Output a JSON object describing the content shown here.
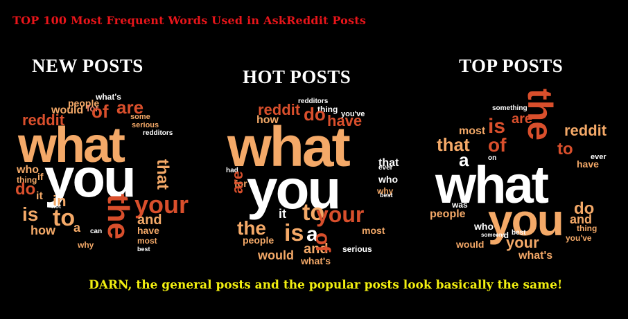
{
  "title": "TOP 100 Most Frequent Words Used in AskReddit Posts",
  "footer": "DARN, the general posts and the popular posts look basically the same!",
  "colors": {
    "orange": "#f4a968",
    "red": "#d94f2c",
    "dark_red": "#b0232a",
    "white": "#ffffff",
    "pink": "#e8836b"
  },
  "panels": [
    {
      "label": "NEW POSTS",
      "words": [
        "what's",
        "people",
        "would",
        "for",
        "of",
        "are",
        "reddit",
        "some",
        "serious",
        "redditors",
        "what",
        "you",
        "that",
        "who",
        "thing",
        "do",
        "if",
        "it",
        "your",
        "in",
        "the",
        "to",
        "is",
        "not",
        "how",
        "why",
        "have",
        "and",
        "most",
        "best",
        "can",
        "a",
        "that"
      ]
    },
    {
      "label": "HOT POSTS",
      "words": [
        "redditors",
        "reddit",
        "thing",
        "do",
        "how",
        "you've",
        "have",
        "what",
        "you",
        "that",
        "for",
        "had",
        "are",
        "who",
        "why",
        "to",
        "your",
        "it",
        "is",
        "a",
        "and",
        "the",
        "people",
        "of",
        "most",
        "serious",
        "would",
        "what's",
        "ever",
        "best"
      ]
    },
    {
      "label": "TOP POSTS",
      "words": [
        "something",
        "are",
        "the",
        "reddit",
        "most",
        "is",
        "that",
        "of",
        "to",
        "a",
        "what",
        "have",
        "ever",
        "on",
        "was",
        "do",
        "and",
        "people",
        "who",
        "thing",
        "did",
        "you",
        "your",
        "would",
        "what's",
        "you've",
        "someone",
        "best"
      ]
    }
  ]
}
